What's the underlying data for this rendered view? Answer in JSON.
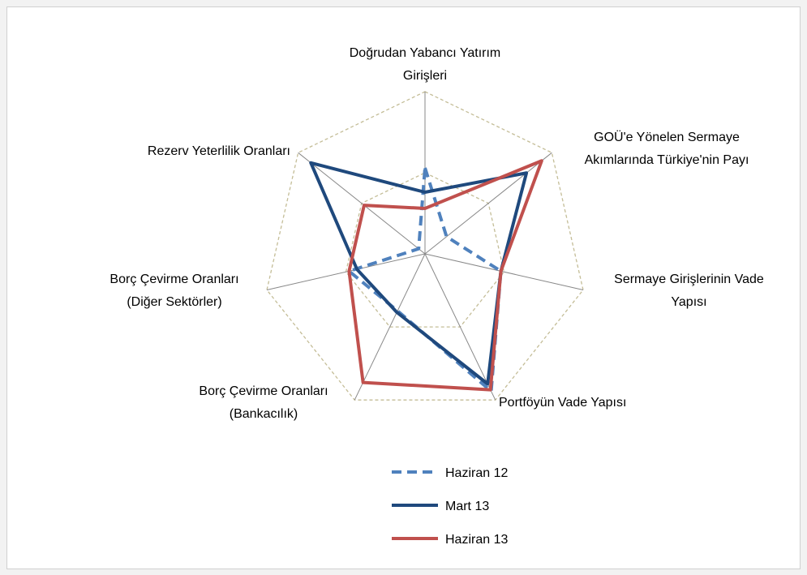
{
  "chart_data": {
    "type": "radar",
    "categories": [
      "Doğrudan Yabancı Yatırım Girişleri",
      "GOÜ'e Yönelen Sermaye Akımlarında Türkiye'nin Payı",
      "Sermaye Girişlerinin Vade Yapısı",
      "Portföyün Vade Yapısı",
      "Borç Çevirme Oranları (Bankacılık)",
      "Borç Çevirme Oranları (Diğer Sektörler)",
      "Rezerv Yeterlilik Oranları"
    ],
    "series": [
      {
        "name": "Haziran 12",
        "color": "#4f81bd",
        "dashed": true,
        "values": [
          0.53,
          0.17,
          0.48,
          0.94,
          0.39,
          0.48,
          0.05
        ]
      },
      {
        "name": "Mart 13",
        "color": "#1f497d",
        "dashed": false,
        "values": [
          0.38,
          0.8,
          0.48,
          0.89,
          0.4,
          0.43,
          0.9
        ]
      },
      {
        "name": "Haziran 13",
        "color": "#c0504d",
        "dashed": false,
        "values": [
          0.28,
          0.92,
          0.48,
          0.93,
          0.88,
          0.48,
          0.48
        ]
      }
    ],
    "rlim": [
      0,
      1
    ],
    "rticks": [
      0.5,
      1
    ],
    "grid": true
  }
}
